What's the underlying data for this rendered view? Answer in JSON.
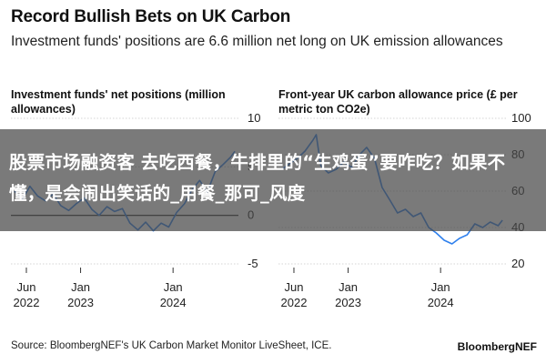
{
  "header": {
    "title": "Record Bullish Bets on UK Carbon",
    "subtitle": "Investment funds' positions are 6.6 million net long on UK emission allowances"
  },
  "overlay": {
    "text": "股票市场融资客 去吃西餐，牛排里的“生鸡蛋”要咋吃？如果不懂，是会闹出笑话的_用餐_那可_风度"
  },
  "footer": {
    "source": "Source: BloombergNEF's UK Carbon Market Monitor LiveSheet, ICE.",
    "brand": "BloombergNEF"
  },
  "colors": {
    "line": "#2f80ed",
    "grid": "#c8c8c8",
    "zero": "#1a1a1a"
  },
  "chart_data": [
    {
      "type": "line",
      "title": "Investment funds' net positions (million allowances)",
      "ylim": [
        -5,
        10
      ],
      "yticks": [
        10,
        5,
        0,
        -5
      ],
      "xticks": [
        {
          "label": "Jun",
          "sub": "2022",
          "date": "2022-06-01"
        },
        {
          "label": "Jan",
          "sub": "2023",
          "date": "2023-01-01"
        },
        {
          "label": "Jan",
          "sub": "2024",
          "date": "2024-01-01"
        }
      ],
      "xlim": [
        "2022-04-01",
        "2024-09-15"
      ],
      "series": [
        {
          "x": [
            "2022-04-15",
            "2022-05-15",
            "2022-06-15",
            "2022-07-15",
            "2022-08-15",
            "2022-09-15",
            "2022-10-15",
            "2022-11-15",
            "2022-12-15",
            "2023-01-15",
            "2023-02-15",
            "2023-03-15",
            "2023-04-15",
            "2023-05-15",
            "2023-06-15",
            "2023-07-15",
            "2023-08-15",
            "2023-09-15",
            "2023-10-15",
            "2023-11-15",
            "2023-12-15",
            "2024-01-15",
            "2024-02-15",
            "2024-03-15",
            "2024-04-15",
            "2024-05-15",
            "2024-06-15",
            "2024-07-15",
            "2024-08-15",
            "2024-09-01"
          ],
          "y": [
            2.5,
            1.6,
            3.0,
            2.0,
            1.5,
            2.2,
            1.0,
            0.5,
            1.2,
            1.8,
            0.6,
            0.0,
            0.9,
            0.4,
            0.7,
            -0.8,
            -1.5,
            -0.7,
            -1.6,
            -0.8,
            -1.2,
            0.3,
            1.2,
            2.6,
            3.6,
            2.4,
            4.5,
            5.2,
            6.0,
            6.6
          ]
        }
      ]
    },
    {
      "type": "line",
      "title": "Front-year UK carbon allowance price (£ per metric ton CO2e)",
      "ylim": [
        20,
        100
      ],
      "yticks": [
        100,
        80,
        60,
        40,
        20
      ],
      "xticks": [
        {
          "label": "Jun",
          "sub": "2022",
          "date": "2022-06-01"
        },
        {
          "label": "Jan",
          "sub": "2023",
          "date": "2023-01-01"
        },
        {
          "label": "Jan",
          "sub": "2024",
          "date": "2024-01-01"
        }
      ],
      "xlim": [
        "2022-04-01",
        "2024-09-15"
      ],
      "series": [
        {
          "x": [
            "2022-04-15",
            "2022-05-15",
            "2022-06-15",
            "2022-07-15",
            "2022-08-15",
            "2022-08-28",
            "2022-09-15",
            "2022-10-15",
            "2022-11-15",
            "2022-12-15",
            "2023-01-15",
            "2023-02-15",
            "2023-03-15",
            "2023-04-15",
            "2023-05-15",
            "2023-06-15",
            "2023-07-15",
            "2023-08-15",
            "2023-09-15",
            "2023-10-15",
            "2023-11-15",
            "2023-12-15",
            "2024-01-15",
            "2024-02-15",
            "2024-03-15",
            "2024-04-15",
            "2024-05-15",
            "2024-06-15",
            "2024-07-15",
            "2024-08-15",
            "2024-09-01"
          ],
          "y": [
            72,
            75,
            78,
            82,
            88,
            91,
            74,
            70,
            72,
            76,
            73,
            80,
            84,
            78,
            62,
            55,
            48,
            50,
            46,
            48,
            40,
            37,
            33,
            31,
            34,
            36,
            42,
            40,
            43,
            41,
            44
          ]
        }
      ]
    }
  ]
}
